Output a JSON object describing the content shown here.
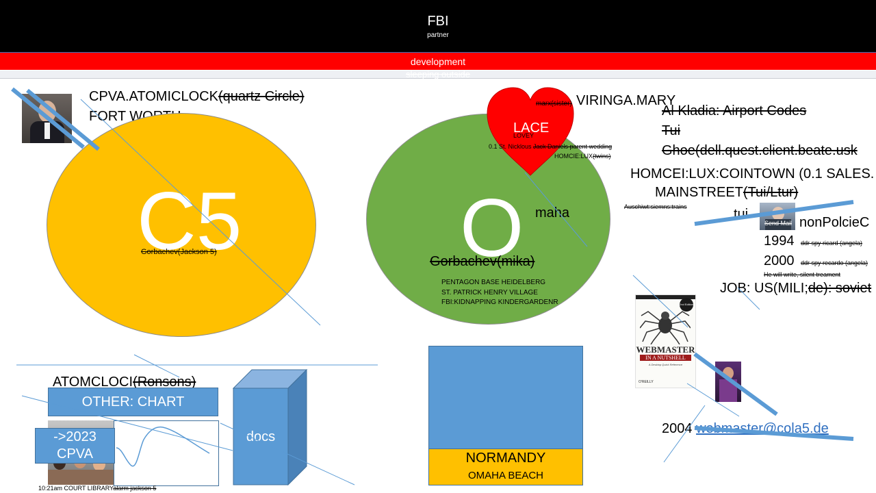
{
  "header": {
    "title": "FBI",
    "subtitle": "partner",
    "dev_label": "development",
    "sleeping_label": "sleeping outside"
  },
  "left": {
    "cpva_line1": "CPVA.ATOMICLOCK",
    "cpva_strike": "(quartz Circle)",
    "fort_worth": "FORT WORTH",
    "c5_label": "C5",
    "gorbachev_jackson": "Gorbachev(Jackson  5)"
  },
  "center": {
    "o_label": "O",
    "maha": "maha",
    "gorbachev_mika": "Gorbachev(mika)",
    "pentagon": "PENTAGON BASE HEIDELBERG",
    "st_patrick": "ST. PATRICK HENRY VILLAGE",
    "fbi_kidnap": "FBI:KIDNAPPING KINDERGARDENR",
    "heart_label": "LACE",
    "lovey": "LOVEY",
    "marx_sister": "marx(sister)",
    "viringa": "VIRINGA.MARY",
    "st_nicklous_prefix": "0.1 St. Nicklous ",
    "st_nicklous_strike": "Jack Daniels parent wedding",
    "homcie_lux": "HOMCIE:LUX",
    "homcie_twins": "(twins)"
  },
  "right": {
    "al_kladia": "Al Kladia: Airport Codes",
    "tui_strike": "Tui",
    "ghoe": "Ghoe(dell.quest.client.beate.usk",
    "homcei_lux": "HOMCEI:LUX:COINTOWN (0.1 SALES.",
    "mainstreet": "MAINSTREET",
    "mainstreet_strike": "(Tui/Ltur)",
    "auschiwt": "Auschiwt:siemns:trains",
    "tui_small": "tui",
    "send_mail": "Send Mail",
    "nonpolcie": "nonPolcieC",
    "year_1994": "1994",
    "spy_ricard": "ddr spy ricard (angela)",
    "year_2000": "2000",
    "spy_recardo": "ddr spy recardo (angela)",
    "he_will_write": "He will write, silent treament",
    "job": "JOB: US(MILI;",
    "job_strike": "de): soviet",
    "year_2004": "2004 ",
    "email": "webmaster@cola5.de",
    "book_title": "WEBMASTER",
    "book_subtitle": "IN A NUTSHELL",
    "book_tag": "A Desktop Quick Reference",
    "book_publisher": "O'REILLY",
    "book_badge": "2nd Edition"
  },
  "bottom": {
    "atomcloci": "ATOMCLOCI",
    "ronsons": "(Ronsons)",
    "other_chart": "OTHER: CHART",
    "arrow_2023": "->2023",
    "cpva": "CPVA",
    "docs": "docs",
    "normandy": "NORMANDY",
    "omaha_beach": "OMAHA BEACH",
    "court_library": "10:21am COURT LIBRARY",
    "alarm_jackson": "alarm jackson 5"
  },
  "colors": {
    "yellow": "#ffc000",
    "green": "#70ad47",
    "blue": "#5b9bd5",
    "red": "#ff0000"
  }
}
